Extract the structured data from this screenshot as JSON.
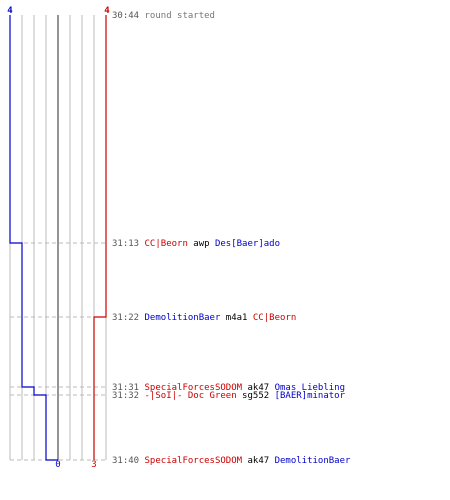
{
  "score": {
    "blue_start": "4",
    "red_start": "4",
    "blue_end": "0",
    "red_end": "3"
  },
  "colors": {
    "blue": "#0000cc",
    "red": "#cc0000",
    "grid": "#bbbbbb",
    "center": "#666666",
    "dash": "#bbbbbb",
    "time": "#555555",
    "system": "#777777",
    "weapon": "#000000"
  },
  "events": [
    {
      "time": "30:44",
      "parts": [
        {
          "text": "round started",
          "role": "system"
        }
      ]
    },
    {
      "time": "31:13",
      "parts": [
        {
          "text": "CC|Beorn",
          "role": "red"
        },
        {
          "text": " awp ",
          "role": "weapon"
        },
        {
          "text": "Des[Baer]ado",
          "role": "blue"
        }
      ]
    },
    {
      "time": "31:22",
      "parts": [
        {
          "text": "DemolitionBaer",
          "role": "blue"
        },
        {
          "text": " m4a1 ",
          "role": "weapon"
        },
        {
          "text": "CC|Beorn",
          "role": "red"
        }
      ]
    },
    {
      "time": "31:31",
      "parts": [
        {
          "text": "SpecialForcesSODOM",
          "role": "red"
        },
        {
          "text": " ak47 ",
          "role": "weapon"
        },
        {
          "text": "Omas Liebling",
          "role": "blue"
        }
      ]
    },
    {
      "time": "31:32",
      "parts": [
        {
          "text": "-|SoI|- Doc Green",
          "role": "red"
        },
        {
          "text": " sg552 ",
          "role": "weapon"
        },
        {
          "text": "[BAER]minator",
          "role": "blue"
        }
      ]
    },
    {
      "time": "31:40",
      "parts": [
        {
          "text": "SpecialForcesSODOM",
          "role": "red"
        },
        {
          "text": " ak47 ",
          "role": "weapon"
        },
        {
          "text": "DemolitionBaer",
          "role": "blue"
        }
      ]
    }
  ]
}
